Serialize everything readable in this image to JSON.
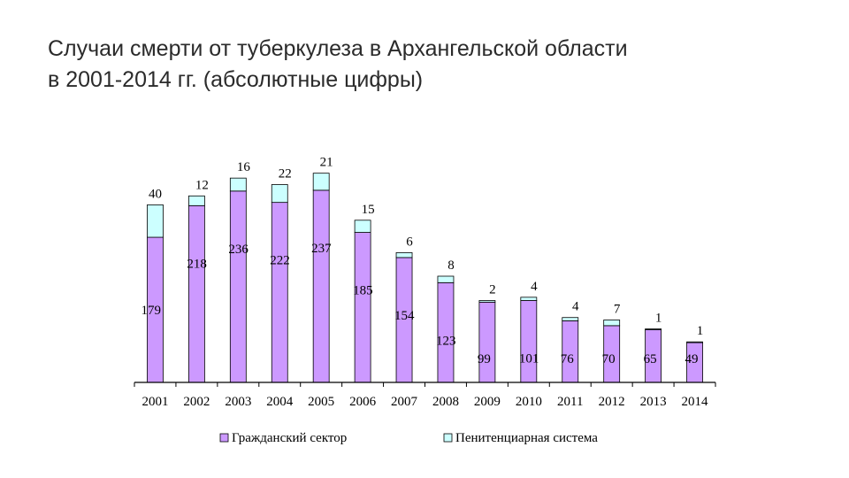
{
  "slide": {
    "title_line1": "Случаи смерти от туберкулеза в Архангельской области",
    "title_line2": "в 2001-2014 гг. (абсолютные цифры)"
  },
  "chart_data": {
    "type": "bar",
    "stacked": true,
    "title": "Случаи смерти от туберкулеза в Архангельской области в 2001-2014 гг. (абсолютные цифры)",
    "xlabel": "",
    "ylabel": "",
    "ylim": [
      0,
      265
    ],
    "grid": false,
    "legend_position": "bottom",
    "categories": [
      "2001",
      "2002",
      "2003",
      "2004",
      "2005",
      "2006",
      "2007",
      "2008",
      "2009",
      "2010",
      "2011",
      "2012",
      "2013",
      "2014"
    ],
    "series": [
      {
        "name": "Гражданский сектор",
        "color": "#cc99ff",
        "values": [
          179,
          218,
          236,
          222,
          237,
          185,
          154,
          123,
          99,
          101,
          76,
          70,
          65,
          49
        ]
      },
      {
        "name": "Пенитенциарная система",
        "color": "#ccffff",
        "values": [
          40,
          12,
          16,
          22,
          21,
          15,
          6,
          8,
          2,
          4,
          4,
          7,
          1,
          1
        ]
      }
    ]
  }
}
